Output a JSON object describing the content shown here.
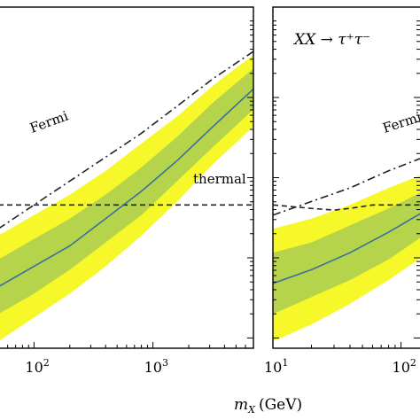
{
  "chart_data": [
    {
      "type": "line",
      "panel": "left",
      "title": "",
      "x_scale": "log",
      "y_scale": "log",
      "xlim": [
        50,
        7000
      ],
      "ylim_rel": [
        0,
        1
      ],
      "x_ticks": [
        {
          "value": 100,
          "base": "10",
          "exp": "2"
        },
        {
          "value": 1000,
          "base": "10",
          "exp": "3"
        }
      ],
      "series": [
        {
          "name": "Fermi",
          "style": "dashdot",
          "color": "#222222",
          "x": [
            50,
            100,
            200,
            400,
            800,
            1600,
            3200,
            7000
          ],
          "y": [
            0.35,
            0.42,
            0.49,
            0.56,
            0.63,
            0.71,
            0.79,
            0.87
          ]
        },
        {
          "name": "thermal",
          "style": "dashed",
          "color": "#222222",
          "x": [
            50,
            7000
          ],
          "y": [
            0.42,
            0.42
          ]
        },
        {
          "name": "",
          "style": "solid",
          "color": "#3a6e9f",
          "x": [
            50,
            100,
            200,
            400,
            800,
            1600,
            3200,
            7000
          ],
          "y": [
            0.18,
            0.24,
            0.3,
            0.38,
            0.46,
            0.55,
            0.65,
            0.76
          ]
        }
      ],
      "bands": [
        {
          "color": "#f6f82a",
          "x": [
            50,
            100,
            200,
            400,
            800,
            1600,
            3200,
            7000
          ],
          "lower": [
            0.02,
            0.09,
            0.16,
            0.24,
            0.33,
            0.43,
            0.54,
            0.65
          ],
          "upper": [
            0.33,
            0.39,
            0.45,
            0.52,
            0.6,
            0.68,
            0.77,
            0.86
          ]
        },
        {
          "color": "#b5d34b",
          "x": [
            50,
            100,
            200,
            400,
            800,
            1600,
            3200,
            7000
          ],
          "lower": [
            0.1,
            0.16,
            0.23,
            0.31,
            0.39,
            0.49,
            0.59,
            0.7
          ],
          "upper": [
            0.26,
            0.32,
            0.38,
            0.45,
            0.53,
            0.62,
            0.72,
            0.82
          ]
        }
      ],
      "annotations": [
        {
          "text": "Fermi",
          "near_series": "Fermi"
        },
        {
          "text": "thermal",
          "near_series": "thermal"
        }
      ]
    },
    {
      "type": "line",
      "panel": "right",
      "title": "XX → τ⁺τ⁻",
      "x_scale": "log",
      "y_scale": "log",
      "xlim": [
        10,
        150
      ],
      "ylim_rel": [
        0,
        1
      ],
      "x_ticks": [
        {
          "value": 10,
          "base": "10",
          "exp": "1"
        },
        {
          "value": 100,
          "base": "10",
          "exp": "2"
        }
      ],
      "series": [
        {
          "name": "Fermi",
          "style": "dashdot",
          "color": "#222222",
          "x": [
            10,
            20,
            40,
            80,
            150
          ],
          "y": [
            0.39,
            0.43,
            0.47,
            0.52,
            0.56
          ]
        },
        {
          "name": "thermal",
          "style": "dashed",
          "color": "#222222",
          "x": [
            10,
            20,
            30,
            40,
            60,
            150
          ],
          "y": [
            0.42,
            0.41,
            0.405,
            0.41,
            0.42,
            0.42
          ]
        },
        {
          "name": "",
          "style": "solid",
          "color": "#3a6e9f",
          "x": [
            10,
            20,
            40,
            80,
            150
          ],
          "y": [
            0.19,
            0.23,
            0.28,
            0.34,
            0.4
          ]
        }
      ],
      "bands": [
        {
          "color": "#f6f82a",
          "x": [
            10,
            20,
            40,
            80,
            150
          ],
          "lower": [
            0.02,
            0.07,
            0.13,
            0.2,
            0.27
          ],
          "upper": [
            0.35,
            0.38,
            0.42,
            0.47,
            0.51
          ]
        },
        {
          "color": "#b5d34b",
          "x": [
            10,
            20,
            40,
            80,
            150
          ],
          "lower": [
            0.1,
            0.15,
            0.2,
            0.26,
            0.33
          ],
          "upper": [
            0.28,
            0.31,
            0.36,
            0.41,
            0.46
          ]
        }
      ],
      "annotations": [
        {
          "text": "Fermi",
          "near_series": "Fermi"
        }
      ]
    }
  ],
  "shared": {
    "xlabel_var": "m",
    "xlabel_sub": "X",
    "xlabel_unit": "(GeV)"
  }
}
